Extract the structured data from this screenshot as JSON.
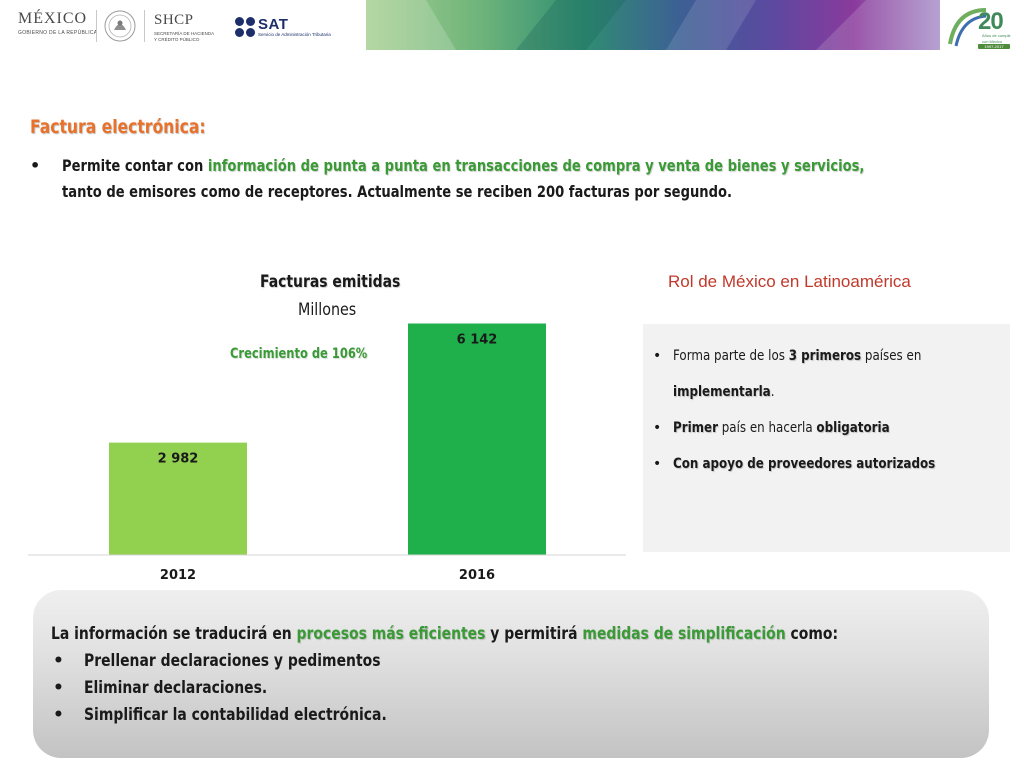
{
  "header": {
    "mexico_logo": {
      "title": "MÉXICO",
      "subtitle": "GOBIERNO DE LA REPÚBLICA"
    },
    "shcp_logo": {
      "title": "SHCP",
      "subtitle_line1": "SECRETARÍA DE HACIENDA",
      "subtitle_line2": "Y CRÉDITO PÚBLICO"
    },
    "sat_logo": {
      "title": "SAT",
      "subtitle": "Servicio de Administración Tributaria"
    },
    "anniversary": {
      "number": "20",
      "line1": "Años de cumplir",
      "line2": "con México",
      "years": "1997-2017"
    },
    "colors": {
      "brand_green": "#3a9a35",
      "title_orange": "#e8722b",
      "panel_title_red": "#c0392b"
    }
  },
  "slide": {
    "title": "Factura electrónica:",
    "intro": {
      "bullet": "•",
      "line1_before": "Permite contar con ",
      "line1_highlight": "información de punta a punta en transacciones de compra y venta de bienes y servicios,",
      "line2": "tanto de emisores como de receptores. Actualmente se reciben 200 facturas por segundo."
    }
  },
  "chart_data": {
    "type": "bar",
    "title": "Facturas emitidas",
    "subtitle": "Millones",
    "annotation": "Crecimiento de 106%",
    "categories": [
      "2012",
      "2016"
    ],
    "values": [
      2982,
      6142
    ],
    "value_labels": [
      "2 982",
      "6 142"
    ],
    "bar_colors": [
      "#92d050",
      "#1fb04b"
    ],
    "ylim": [
      0,
      6500
    ],
    "grid": false,
    "legend": "none"
  },
  "panel": {
    "title": "Rol de México en Latinoamérica",
    "items": [
      {
        "pre": "Forma parte de los ",
        "bold1": "3 primeros",
        "post": " países en"
      },
      {
        "bold": "implementarla",
        "post": "."
      },
      {
        "bold1": "Primer",
        "mid": " país en hacerla ",
        "bold2": "obligatoria"
      },
      {
        "bold": "Con apoyo de proveedores autorizados"
      }
    ]
  },
  "bottom": {
    "line1_a": "La información se traducirá en ",
    "line1_b": "procesos más eficientes",
    "line1_c": " y permitirá ",
    "line1_d": "medidas de simplificación",
    "line1_e": " como:",
    "bullets": [
      "Prellenar declaraciones y pedimentos",
      "Eliminar declaraciones.",
      "Simplificar la contabilidad electrónica."
    ]
  }
}
